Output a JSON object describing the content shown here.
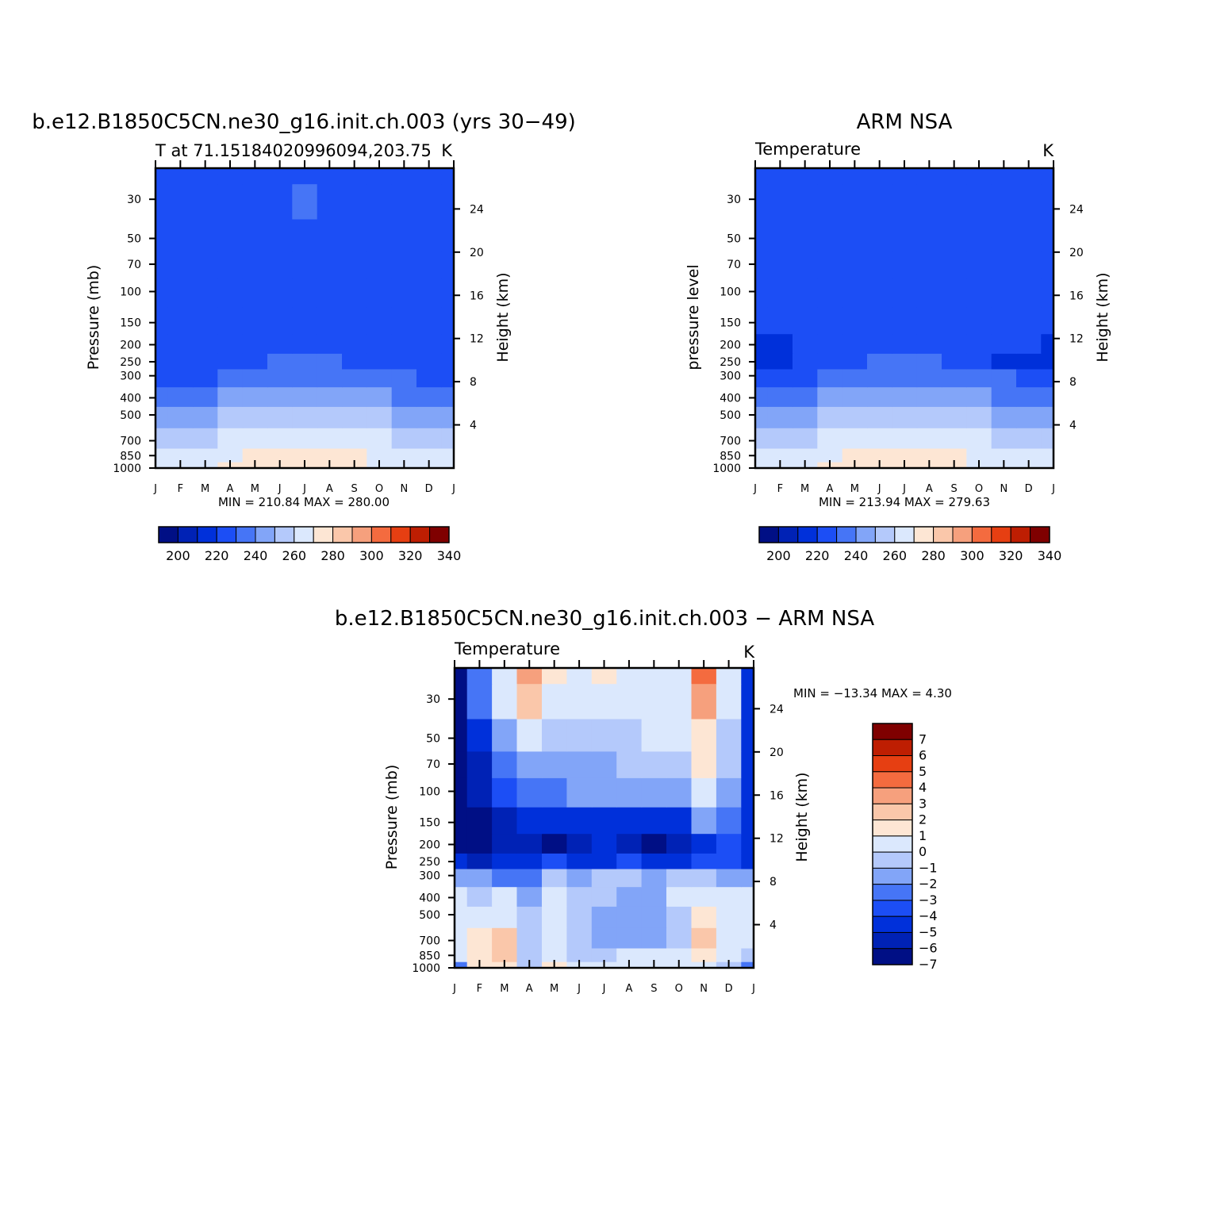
{
  "colors": {
    "abs_palette": [
      "#000f85",
      "#0022b5",
      "#0030da",
      "#1c4ef5",
      "#4675f6",
      "#82a5f8",
      "#b4c9fb",
      "#dbe8fd",
      "#fde6d4",
      "#fac7aa",
      "#f6a07d",
      "#f46b3f",
      "#e63f12",
      "#be1e02",
      "#7f0000"
    ],
    "diff_palette": [
      "#000f85",
      "#0022b5",
      "#0030da",
      "#1c4ef5",
      "#4675f6",
      "#82a5f8",
      "#b4c9fb",
      "#dbe8fd",
      "#fde6d4",
      "#fac7aa",
      "#f6a07d",
      "#f46b3f",
      "#e63f12",
      "#be1e02",
      "#7f0000"
    ]
  },
  "chart_data": [
    {
      "type": "heatmap",
      "title": "b.e12.B1850C5CN.ne30_g16.init.ch.003 (yrs 30−49)",
      "subtitle_left": "T at 71.15184020996094,203.75",
      "subtitle_right": "K",
      "ylabel": "Pressure (mb)",
      "ylabel_right": "Height (km)",
      "months": [
        "J",
        "F",
        "M",
        "A",
        "M",
        "J",
        "J",
        "A",
        "S",
        "O",
        "N",
        "D",
        "J"
      ],
      "pressure_ticks": [
        "30",
        "50",
        "70",
        "100",
        "150",
        "200",
        "250",
        "300",
        "400",
        "500",
        "700",
        "850",
        "1000"
      ],
      "pressure_values": [
        30,
        50,
        70,
        100,
        150,
        200,
        250,
        300,
        400,
        500,
        700,
        850,
        1000
      ],
      "height_ticks": [
        "24",
        "20",
        "16",
        "12",
        "8",
        "4"
      ],
      "height_values": [
        24,
        20,
        16,
        12,
        8,
        4
      ],
      "minmax": "MIN = 210.84 MAX = 280.00",
      "colorbar_labels": [
        "200",
        "220",
        "240",
        "260",
        "280",
        "300",
        "320",
        "340"
      ],
      "colorbar_levels": [
        190,
        200,
        210,
        220,
        230,
        240,
        250,
        260,
        270,
        280,
        290,
        300,
        310,
        320,
        330,
        340,
        350
      ],
      "levels_hPa": [
        1000,
        850,
        700,
        500,
        400,
        300,
        250,
        200,
        150,
        100,
        70,
        50,
        30,
        20
      ],
      "values": [
        [
          268,
          268,
          269,
          271,
          274,
          277,
          279,
          276,
          271,
          268,
          267,
          267,
          268
        ],
        [
          265,
          264,
          265,
          268,
          272,
          275,
          276,
          274,
          270,
          266,
          264,
          264,
          265
        ],
        [
          258,
          257,
          258,
          261,
          265,
          268,
          269,
          268,
          264,
          260,
          258,
          257,
          258
        ],
        [
          246,
          246,
          247,
          250,
          254,
          257,
          259,
          258,
          254,
          250,
          248,
          247,
          246
        ],
        [
          237,
          237,
          238,
          241,
          245,
          248,
          249,
          248,
          245,
          241,
          239,
          238,
          237
        ],
        [
          228,
          228,
          229,
          232,
          235,
          237,
          238,
          237,
          235,
          232,
          230,
          229,
          228
        ],
        [
          224,
          224,
          224,
          226,
          228,
          230,
          231,
          230,
          228,
          226,
          225,
          224,
          224
        ],
        [
          222,
          222,
          222,
          222,
          223,
          223,
          224,
          223,
          223,
          222,
          222,
          222,
          222
        ],
        [
          222,
          222,
          222,
          222,
          224,
          226,
          227,
          226,
          224,
          222,
          222,
          222,
          222
        ],
        [
          222,
          222,
          222,
          224,
          226,
          227,
          227,
          227,
          226,
          225,
          222,
          222,
          222
        ],
        [
          222,
          222,
          224,
          225,
          226,
          227,
          227,
          227,
          226,
          225,
          222,
          222,
          222
        ],
        [
          222,
          222,
          225,
          225,
          226,
          227,
          227,
          227,
          226,
          225,
          222,
          222,
          222
        ],
        [
          222,
          222,
          225,
          225,
          226,
          227,
          231,
          226,
          226,
          225,
          222,
          222,
          222
        ],
        [
          222,
          222,
          225,
          225,
          226,
          227,
          228,
          226,
          226,
          225,
          222,
          222,
          222
        ]
      ]
    },
    {
      "type": "heatmap",
      "title": "ARM NSA",
      "subtitle_left": "Temperature",
      "subtitle_right": "K",
      "ylabel": "pressure level",
      "ylabel_right": "Height (km)",
      "months": [
        "J",
        "F",
        "M",
        "A",
        "M",
        "J",
        "J",
        "A",
        "S",
        "O",
        "N",
        "D",
        "J"
      ],
      "pressure_ticks": [
        "30",
        "50",
        "70",
        "100",
        "150",
        "200",
        "250",
        "300",
        "400",
        "500",
        "700",
        "850",
        "1000"
      ],
      "pressure_values": [
        30,
        50,
        70,
        100,
        150,
        200,
        250,
        300,
        400,
        500,
        700,
        850,
        1000
      ],
      "height_ticks": [
        "24",
        "20",
        "16",
        "12",
        "8",
        "4"
      ],
      "height_values": [
        24,
        20,
        16,
        12,
        8,
        4
      ],
      "minmax": "MIN = 213.94 MAX = 279.63",
      "colorbar_labels": [
        "200",
        "220",
        "240",
        "260",
        "280",
        "300",
        "320",
        "340"
      ],
      "colorbar_levels": [
        190,
        200,
        210,
        220,
        230,
        240,
        250,
        260,
        270,
        280,
        290,
        300,
        310,
        320,
        330,
        340,
        350
      ],
      "levels_hPa": [
        1000,
        850,
        700,
        500,
        400,
        300,
        250,
        200,
        150,
        100,
        70,
        50,
        30,
        20
      ],
      "values": [
        [
          268,
          268,
          269,
          272,
          275,
          277,
          279,
          276,
          271,
          268,
          267,
          267,
          268
        ],
        [
          265,
          264,
          265,
          269,
          272,
          275,
          276,
          274,
          270,
          266,
          264,
          264,
          265
        ],
        [
          258,
          257,
          258,
          262,
          266,
          268,
          269,
          268,
          264,
          260,
          258,
          257,
          258
        ],
        [
          247,
          246,
          247,
          251,
          255,
          258,
          259,
          258,
          254,
          251,
          248,
          247,
          247
        ],
        [
          238,
          237,
          238,
          242,
          246,
          248,
          249,
          248,
          245,
          241,
          239,
          238,
          238
        ],
        [
          229,
          228,
          229,
          232,
          236,
          238,
          239,
          238,
          235,
          232,
          230,
          229,
          229
        ],
        [
          219,
          218,
          221,
          226,
          229,
          231,
          232,
          231,
          229,
          224,
          219,
          218,
          219
        ],
        [
          219,
          219,
          221,
          225,
          226,
          227,
          227,
          227,
          225,
          224,
          221,
          220,
          219
        ],
        [
          224,
          225,
          225,
          225,
          226,
          227,
          227,
          227,
          225,
          225,
          224,
          222,
          221
        ],
        [
          225,
          225,
          225,
          225,
          226,
          227,
          227,
          227,
          225,
          225,
          224,
          222,
          221
        ],
        [
          225,
          225,
          225,
          225,
          226,
          227,
          227,
          227,
          225,
          224,
          222,
          222,
          221
        ],
        [
          225,
          225,
          225,
          225,
          226,
          227,
          227,
          227,
          225,
          224,
          222,
          222,
          220
        ],
        [
          225,
          225,
          225,
          225,
          226,
          227,
          227,
          226,
          225,
          224,
          222,
          222,
          220
        ],
        [
          225,
          225,
          225,
          225,
          226,
          226,
          226,
          226,
          225,
          224,
          222,
          222,
          220
        ]
      ]
    },
    {
      "type": "heatmap",
      "title": "b.e12.B1850C5CN.ne30_g16.init.ch.003 − ARM NSA",
      "subtitle_left": "Temperature",
      "subtitle_right": "K",
      "ylabel": "Pressure (mb)",
      "ylabel_right": "Height (km)",
      "months": [
        "J",
        "F",
        "M",
        "A",
        "M",
        "J",
        "J",
        "A",
        "S",
        "O",
        "N",
        "D",
        "J"
      ],
      "pressure_ticks": [
        "30",
        "50",
        "70",
        "100",
        "150",
        "200",
        "250",
        "300",
        "400",
        "500",
        "700",
        "850",
        "1000"
      ],
      "pressure_values": [
        30,
        50,
        70,
        100,
        150,
        200,
        250,
        300,
        400,
        500,
        700,
        850,
        1000
      ],
      "height_ticks": [
        "24",
        "20",
        "16",
        "12",
        "8",
        "4"
      ],
      "height_values": [
        24,
        20,
        16,
        12,
        8,
        4
      ],
      "minmax": "MIN = −13.34 MAX =    4.30",
      "colorbar_labels": [
        "7",
        "6",
        "5",
        "4",
        "3",
        "2",
        "1",
        "0",
        "−1",
        "−2",
        "−3",
        "−4",
        "−5",
        "−6",
        "−7"
      ],
      "colorbar_levels": [
        -8,
        -7,
        -6,
        -5,
        -4,
        -3,
        -2,
        -1,
        0,
        1,
        2,
        3,
        4,
        5,
        6,
        7,
        8
      ],
      "levels_hPa": [
        1000,
        850,
        700,
        500,
        400,
        300,
        250,
        200,
        150,
        100,
        70,
        50,
        30,
        20
      ],
      "values": [
        [
          -4,
          0.5,
          0.5,
          -2,
          0.5,
          -1,
          -1,
          -1,
          -1,
          -1,
          -1,
          -2,
          -4
        ],
        [
          -1,
          0.5,
          1.5,
          -2,
          -1,
          -1.5,
          -1.5,
          -1,
          -1,
          -1,
          0.5,
          -1,
          -2
        ],
        [
          -0.5,
          0.5,
          1,
          -1.5,
          -1,
          -1.5,
          -2.5,
          -2.5,
          -3,
          -1.5,
          1,
          -1,
          -1
        ],
        [
          -0.5,
          -1,
          -0.5,
          -2,
          -1,
          -1.5,
          -2.5,
          -2.5,
          -3,
          -1.5,
          0.5,
          -1,
          -1
        ],
        [
          -0.5,
          -1.5,
          -1,
          -3,
          -1,
          -1.5,
          -2,
          -2.5,
          -3,
          -1,
          -1,
          -1,
          -1
        ],
        [
          -3,
          -3,
          -4,
          -4,
          -2,
          -3,
          -2,
          -2,
          -3,
          -2,
          -2,
          -3,
          -3
        ],
        [
          -6,
          -7,
          -6,
          -6,
          -5,
          -6,
          -6,
          -5,
          -6,
          -6,
          -5,
          -5,
          -6
        ],
        [
          -8,
          -8.5,
          -7,
          -6.5,
          -8.5,
          -7,
          -6,
          -6.5,
          -8.5,
          -7,
          -6,
          -5,
          -6
        ],
        [
          -8,
          -8,
          -6.5,
          -5.5,
          -6,
          -6,
          -5.5,
          -5.5,
          -6,
          -5.5,
          -2.5,
          -4,
          -6
        ],
        [
          -8.5,
          -7,
          -5,
          -4,
          -3.5,
          -3,
          -3,
          -3,
          -3,
          -2.5,
          -0.5,
          -3,
          -6
        ],
        [
          -9,
          -7,
          -4,
          -2.5,
          -2.5,
          -2.5,
          -2.5,
          -2,
          -1.5,
          -1.5,
          0.2,
          -2,
          -6
        ],
        [
          -9,
          -6,
          -3,
          -0.5,
          -2,
          -1.5,
          -1.5,
          -1.5,
          -1,
          -1,
          0.5,
          -1.5,
          -6
        ],
        [
          -9,
          -4,
          -1,
          1.5,
          -0.5,
          -0.5,
          -0.5,
          -0.5,
          -0.5,
          -1,
          2.5,
          -1,
          -6
        ],
        [
          -9,
          -4,
          -1,
          2.5,
          0.5,
          -0.5,
          0.5,
          -0.5,
          -0.5,
          -1,
          3.5,
          -0.5,
          -6
        ]
      ]
    }
  ]
}
